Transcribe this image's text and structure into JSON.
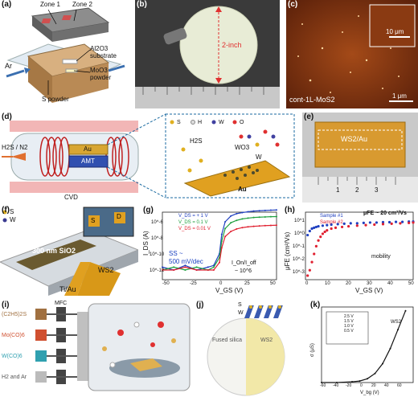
{
  "panels": {
    "a": {
      "label": "(a)",
      "zone1": "Zone 1",
      "zone2": "Zone 2",
      "ar": "Ar",
      "substrate": "Al2O3",
      "substrate2": "substrate",
      "moo3": "MoO3",
      "moo3_2": "powder",
      "s_powder": "S powder"
    },
    "b": {
      "label": "(b)",
      "size": "2-inch"
    },
    "c": {
      "label": "(c)",
      "inset_scale": "10 μm",
      "sample": "cont-1L-MoS2",
      "scale": "1 μm"
    },
    "d": {
      "label": "(d)",
      "gas": "H2S / N2",
      "au": "Au",
      "amt": "AMT",
      "cvd": "CVD",
      "legend": [
        "S",
        "H",
        "W",
        "O"
      ],
      "h2s": "H2S",
      "wo3": "WO3",
      "w": "W",
      "au_surface": "Au"
    },
    "e": {
      "label": "(e)",
      "film": "WS2/Au",
      "ruler": [
        "1",
        "2",
        "3"
      ]
    },
    "f": {
      "label": "(f)",
      "legend_s": "S",
      "legend_w": "W",
      "sio2": "300 nm SiO2",
      "ws2": "WS2",
      "tiau": "Ti/Au",
      "d": "D",
      "s": "S"
    },
    "g": {
      "label": "(g)",
      "ylabel": "I_DS (A)",
      "xlabel": "V_GS (V)",
      "legend": [
        "V_DS = + 1 V",
        "V_DS = 0.1 V",
        "V_DS = 0.01 V"
      ],
      "ss": "SS ~",
      "ss2": "500 mV/dec",
      "onoff": "I_On/I_off",
      "onoff2": "~ 10^6",
      "yticks": [
        "10^-6",
        "10^-8",
        "10^-10",
        "10^-12"
      ],
      "xticks": [
        "-50",
        "-25",
        "0",
        "25",
        "50"
      ]
    },
    "h": {
      "label": "(h)",
      "ylabel": "μFE (cm²/Vs)",
      "xlabel": "V_GS (V)",
      "legend": [
        "Sample #1",
        "Sample #2"
      ],
      "mu": "μFE ~ 20 cm²/Vs",
      "mobility": "mobility",
      "yticks": [
        "10^1",
        "10^0",
        "10^-1",
        "10^-2",
        "10^-3"
      ],
      "xticks": [
        "0",
        "10",
        "20",
        "30",
        "40",
        "50"
      ]
    },
    "i": {
      "label": "(i)",
      "mfc": "MFC",
      "sources": [
        "(C2H5)2S",
        "Mo(CO)6",
        "W(CO)6",
        "H2 and Ar"
      ]
    },
    "j": {
      "label": "(j)",
      "s": "S",
      "w": "W",
      "fused": "Fused silica",
      "ws2": "WS2"
    },
    "k": {
      "label": "(k)",
      "ylabel": "σ (μS)",
      "xlabel": "V_bg (V)",
      "ws2": "WS2",
      "inset_legend": [
        "2.5 V",
        "1.5 V",
        "1.0 V",
        "0.5 V"
      ],
      "xticks": [
        "-60",
        "-40",
        "-20",
        "0",
        "20",
        "40",
        "60"
      ]
    }
  },
  "chart_data": [
    {
      "type": "line",
      "title": "",
      "xlabel": "V_GS (V)",
      "ylabel": "I_DS (A)",
      "yscale": "log",
      "xlim": [
        -50,
        50
      ],
      "ylim": [
        1e-13,
        1e-06
      ],
      "series": [
        {
          "name": "V_DS = + 1 V",
          "color": "#2040c0",
          "x": [
            -50,
            -40,
            -30,
            -20,
            -10,
            -5,
            0,
            2,
            5,
            10,
            15,
            20,
            25,
            30,
            35,
            40,
            45,
            50
          ],
          "y": [
            2e-12,
            1e-12,
            3e-12,
            1e-12,
            2e-12,
            3e-12,
            5e-11,
            5e-09,
            1e-07,
            4e-07,
            7e-07,
            9e-07,
            1.1e-06,
            1.3e-06,
            1.4e-06,
            1.5e-06,
            1.6e-06,
            1.7e-06
          ]
        },
        {
          "name": "V_DS = 0.1 V",
          "color": "#20a040",
          "x": [
            -50,
            -40,
            -30,
            -20,
            -10,
            -5,
            0,
            2,
            5,
            10,
            15,
            20,
            25,
            30,
            35,
            40,
            45,
            50
          ],
          "y": [
            1e-12,
            2e-12,
            1e-12,
            2e-12,
            1e-12,
            2e-12,
            2e-11,
            1e-09,
            2e-08,
            8e-08,
            1.4e-07,
            2e-07,
            2.4e-07,
            2.8e-07,
            3e-07,
            3.2e-07,
            3.4e-07,
            3.5e-07
          ]
        },
        {
          "name": "V_DS = 0.01 V",
          "color": "#e02030",
          "x": [
            -50,
            -40,
            -30,
            -20,
            -10,
            -5,
            0,
            2,
            5,
            10,
            15,
            20,
            25,
            30,
            35,
            40,
            45,
            50
          ],
          "y": [
            1e-12,
            1e-12,
            2e-12,
            1e-12,
            1e-12,
            1e-12,
            6e-12,
            2e-10,
            3e-09,
            1e-08,
            1.8e-08,
            2.5e-08,
            3e-08,
            3.4e-08,
            3.7e-08,
            4e-08,
            4.2e-08,
            4.4e-08
          ]
        }
      ]
    },
    {
      "type": "scatter",
      "title": "",
      "xlabel": "V_GS (V)",
      "ylabel": "μFE (cm²/Vs)",
      "yscale": "log",
      "xlim": [
        0,
        50
      ],
      "ylim": [
        0.001,
        100.0
      ],
      "series": [
        {
          "name": "Sample #1",
          "color": "#2040c0",
          "x": [
            1,
            2,
            3,
            4,
            5,
            6,
            8,
            10,
            12,
            15,
            18,
            21,
            24,
            27,
            30,
            33,
            36,
            39,
            42,
            45,
            48,
            50
          ],
          "y": [
            2,
            4,
            6,
            7,
            8,
            9,
            10,
            11,
            12,
            13,
            14,
            15,
            15,
            16,
            17,
            17,
            18,
            18,
            19,
            19,
            20,
            20
          ]
        },
        {
          "name": "Sample #2",
          "color": "#e02030",
          "x": [
            1,
            2,
            3,
            4,
            5,
            6,
            7,
            8,
            9,
            10,
            12,
            14,
            17,
            20,
            24,
            28,
            32,
            36,
            40,
            44,
            48,
            50
          ],
          "y": [
            0.002,
            0.005,
            0.02,
            0.08,
            0.3,
            0.8,
            1.5,
            2.5,
            3.5,
            4.5,
            6,
            7,
            8,
            9,
            10,
            11,
            12,
            13,
            14,
            15,
            16,
            17
          ]
        }
      ]
    },
    {
      "type": "line",
      "title": "",
      "xlabel": "V_bg (V)",
      "ylabel": "σ (μS)",
      "xlim": [
        -60,
        60
      ],
      "ylim": [
        0,
        1
      ],
      "series": [
        {
          "name": "WS2",
          "color": "#111111",
          "x": [
            -60,
            -40,
            -20,
            -10,
            0,
            10,
            20,
            30,
            40,
            50
          ],
          "y": [
            0.0,
            0.0,
            0.01,
            0.02,
            0.05,
            0.12,
            0.25,
            0.45,
            0.7,
            0.95
          ]
        }
      ]
    }
  ]
}
